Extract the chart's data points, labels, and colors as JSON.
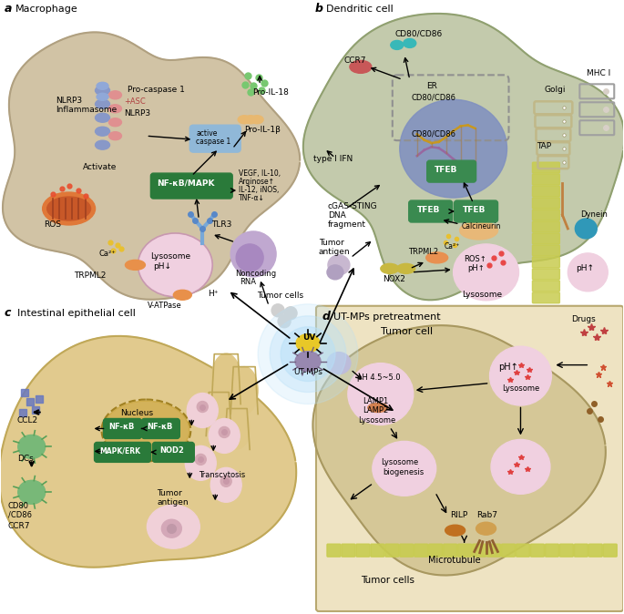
{
  "bg_color": "#ffffff",
  "panel_a": {
    "label": "a",
    "title": "Macrophage",
    "cell_color": "#cfc0a0",
    "cell_border": "#b0a080",
    "lysosome_color": "#f0d0e0",
    "nfkb_color": "#2a7a3a",
    "nfkb_text": "NF-κB/MAPK",
    "mito_outer": "#e07838",
    "mito_inner": "#c85820",
    "trpml2_color": "#e8904a"
  },
  "panel_b": {
    "label": "b",
    "title": "Dendritic cell",
    "cell_color": "#c0c8a8",
    "cell_border": "#90a070",
    "nucleus_color": "#8898c8",
    "lysosome_color": "#f0d0e0",
    "tfeb_color": "#3a8a50",
    "nox2_color": "#c8b840",
    "calcineurin_color": "#e8b878",
    "ccr7_color": "#c85858",
    "cd80_color": "#38b8b8",
    "microtubule_color": "#c8cc50"
  },
  "panel_c": {
    "label": "c",
    "title": "Intestinal epithelial cell",
    "cell_color": "#e0c888",
    "cell_border": "#c0a858",
    "nucleus_color": "#c8a030",
    "nfkb_color": "#2a7a3a",
    "dc_color": "#78b878"
  },
  "panel_d": {
    "label": "d",
    "title": "UT-MPs pretreatment",
    "box_color": "#e8d8a8",
    "box_border": "#b8a870",
    "cell_color": "#c8b880",
    "lysosome_color": "#f0d0e0",
    "microtubule_color": "#c8cc50",
    "rilp_color": "#c07020",
    "rab7_color": "#d0a050"
  },
  "center": {
    "glow_color": "#b8e0f8",
    "uv_color": "#e8c828",
    "utmp_color": "#9888b0"
  }
}
